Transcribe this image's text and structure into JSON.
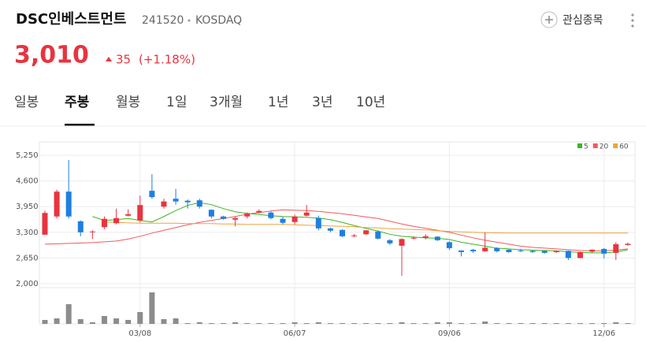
{
  "header": {
    "title": "DSC인베스트먼트",
    "code": "241520",
    "market": "KOSDAQ",
    "price": "3,010",
    "change": "35",
    "change_pct": "(+1.18%)",
    "watch_button": "관심종목"
  },
  "tabs": {
    "items": [
      "일봉",
      "주봉",
      "월봉",
      "1일",
      "3개월",
      "1년",
      "3년",
      "10년"
    ],
    "selected": 1
  },
  "chart_data": {
    "type": "candlestick",
    "categories": [
      null,
      null,
      null,
      null,
      null,
      null,
      null,
      null,
      "03/08",
      null,
      null,
      null,
      null,
      null,
      null,
      null,
      null,
      null,
      null,
      null,
      null,
      "06/07",
      null,
      null,
      null,
      null,
      null,
      null,
      null,
      null,
      null,
      null,
      null,
      null,
      "09/06",
      null,
      null,
      null,
      null,
      null,
      null,
      null,
      null,
      null,
      null,
      null,
      null,
      "12/06",
      null,
      null
    ],
    "open": [
      3240,
      3700,
      4330,
      3580,
      3300,
      3430,
      3530,
      3720,
      3600,
      4350,
      3950,
      4150,
      4100,
      4110,
      3870,
      3700,
      3620,
      3700,
      3800,
      3800,
      3640,
      3560,
      3720,
      3660,
      3400,
      3360,
      3200,
      3250,
      3320,
      3100,
      2960,
      3140,
      3160,
      3190,
      3050,
      2840,
      2860,
      2820,
      2900,
      2860,
      2840,
      2830,
      2830,
      2800,
      2830,
      2650,
      2810,
      2880,
      2780,
      2980
    ],
    "high": [
      3850,
      4380,
      5130,
      3600,
      3350,
      3700,
      3900,
      3880,
      4230,
      4770,
      4150,
      4400,
      4130,
      4150,
      3880,
      3720,
      3700,
      3800,
      3880,
      3830,
      3700,
      3750,
      3990,
      3720,
      3420,
      3380,
      3260,
      3360,
      3350,
      3130,
      3150,
      3200,
      3250,
      3200,
      3080,
      2850,
      2880,
      3300,
      2920,
      2870,
      2880,
      2840,
      2840,
      2840,
      2840,
      2820,
      2870,
      2900,
      3050,
      3040
    ],
    "low": [
      3230,
      3650,
      3650,
      3200,
      3130,
      3380,
      3500,
      3700,
      3550,
      4150,
      3900,
      4000,
      3900,
      3900,
      3650,
      3620,
      3450,
      3650,
      3780,
      3630,
      3500,
      3500,
      3700,
      3350,
      3300,
      3180,
      3180,
      3230,
      3120,
      2980,
      2200,
      3120,
      3120,
      3080,
      2850,
      2690,
      2780,
      2800,
      2790,
      2780,
      2800,
      2780,
      2760,
      2780,
      2600,
      2640,
      2780,
      2640,
      2600,
      2960
    ],
    "close": [
      3790,
      4330,
      3700,
      3300,
      3320,
      3640,
      3660,
      3760,
      3990,
      4190,
      4080,
      4080,
      4060,
      3950,
      3700,
      3640,
      3660,
      3770,
      3840,
      3660,
      3540,
      3700,
      3800,
      3400,
      3340,
      3200,
      3220,
      3350,
      3140,
      3020,
      3130,
      3160,
      3200,
      3100,
      2900,
      2800,
      2820,
      2910,
      2820,
      2800,
      2820,
      2800,
      2780,
      2830,
      2650,
      2800,
      2860,
      2760,
      3000,
      3010
    ],
    "volume": [
      5,
      7,
      25,
      6,
      2,
      10,
      7,
      5,
      15,
      40,
      6,
      7,
      1,
      2,
      1,
      1,
      2,
      1,
      1,
      1,
      1,
      2,
      1,
      2,
      1,
      1,
      1,
      1,
      1,
      1,
      2,
      1,
      1,
      2,
      2,
      1,
      1,
      3,
      1,
      1,
      1,
      1,
      1,
      1,
      1,
      1,
      1,
      1,
      2,
      1
    ],
    "series": [
      {
        "name": "5",
        "color": "#3cb521",
        "values": [
          null,
          null,
          null,
          null,
          3700,
          3600,
          3620,
          3650,
          3600,
          3560,
          3700,
          3850,
          3980,
          4050,
          4000,
          3900,
          3820,
          3780,
          3750,
          3720,
          3700,
          3690,
          3680,
          3660,
          3620,
          3550,
          3470,
          3400,
          3330,
          3250,
          3200,
          3180,
          3160,
          3150,
          3120,
          3050,
          3000,
          2950,
          2900,
          2880,
          2860,
          2850,
          2840,
          2830,
          2810,
          2790,
          2780,
          2780,
          2800,
          2860
        ]
      },
      {
        "name": "20",
        "color": "#f05b5b",
        "values": [
          3000,
          3010,
          3020,
          3030,
          3040,
          3060,
          3080,
          3130,
          3200,
          3280,
          3350,
          3420,
          3490,
          3550,
          3600,
          3650,
          3700,
          3760,
          3800,
          3840,
          3870,
          3860,
          3850,
          3830,
          3800,
          3770,
          3730,
          3690,
          3650,
          3580,
          3510,
          3450,
          3400,
          3350,
          3300,
          3230,
          3160,
          3100,
          3050,
          3000,
          2950,
          2920,
          2900,
          2880,
          2860,
          2840,
          2830,
          2830,
          2850,
          2880
        ]
      },
      {
        "name": "60",
        "color": "#f0a33a",
        "values": [
          null,
          null,
          null,
          null,
          null,
          3560,
          3550,
          3540,
          3530,
          3530,
          3530,
          3530,
          3520,
          3520,
          3520,
          3510,
          3510,
          3500,
          3500,
          3500,
          3500,
          3490,
          3480,
          3470,
          3460,
          3450,
          3440,
          3420,
          3410,
          3390,
          3380,
          3370,
          3360,
          3340,
          3320,
          3310,
          3300,
          3290,
          3285,
          3280,
          3280,
          3280,
          3280,
          3280,
          3280,
          3280,
          3280,
          3280,
          3280,
          3280
        ]
      }
    ],
    "up_color": "#e8343f",
    "down_color": "#1e7fe0",
    "volume_color": "#8c8c8c",
    "ylim": [
      2000,
      5250
    ],
    "yticks": [
      {
        "value": 2000,
        "label": "2,000"
      },
      {
        "value": 2650,
        "label": "2,650"
      },
      {
        "value": 3300,
        "label": "3,300"
      },
      {
        "value": 3950,
        "label": "3,950"
      },
      {
        "value": 4600,
        "label": "4,600"
      },
      {
        "value": 5250,
        "label": "5,250"
      }
    ],
    "grid": true
  }
}
